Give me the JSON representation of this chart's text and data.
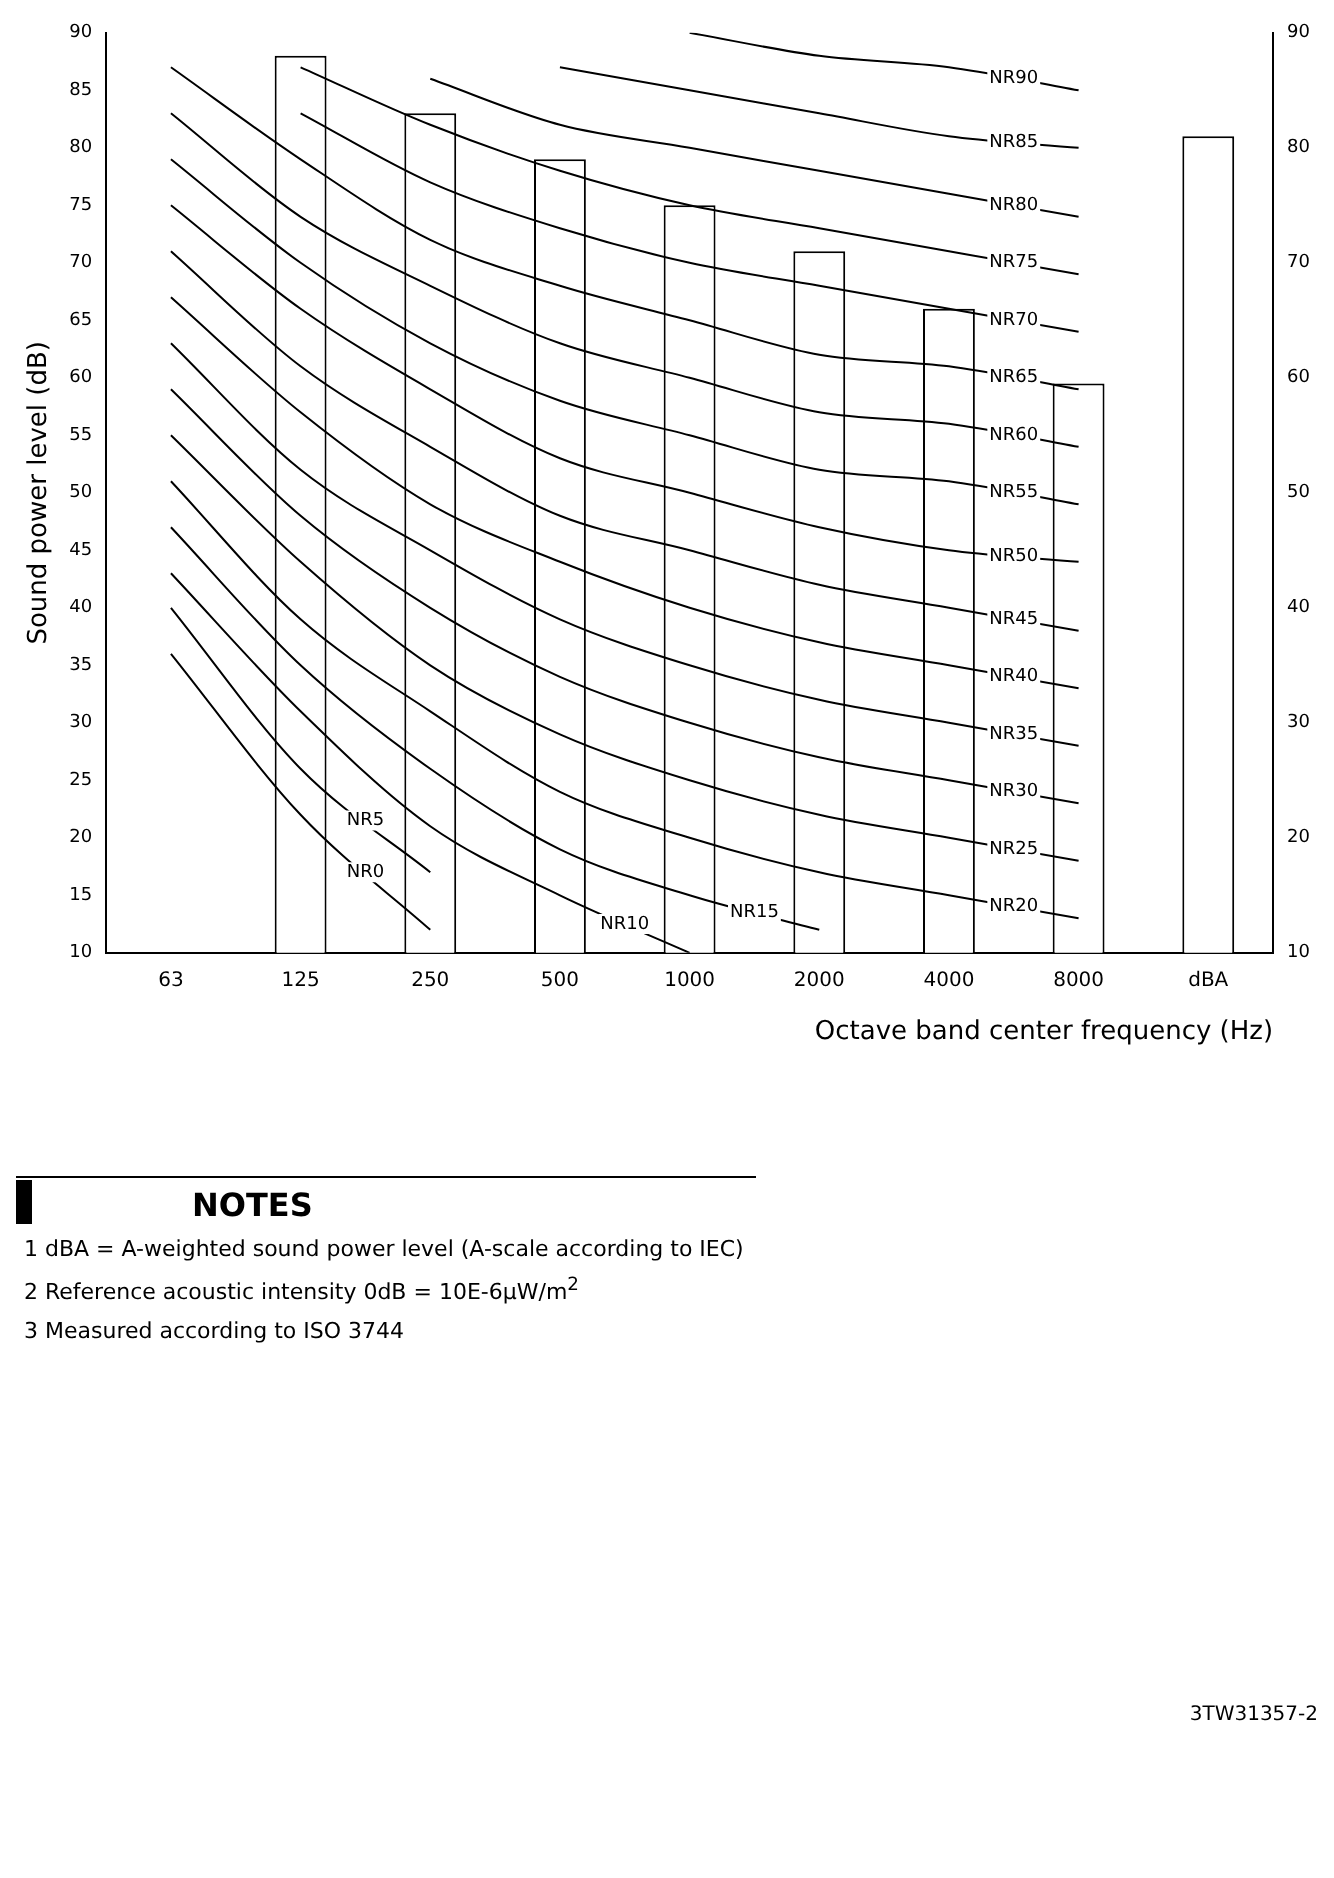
{
  "chart_data": {
    "type": "bar",
    "xlabel": "Octave band center frequency (Hz)",
    "ylabel": "Sound power level (dB)",
    "categories": [
      "63",
      "125",
      "250",
      "500",
      "1000",
      "2000",
      "4000",
      "8000",
      "dBA"
    ],
    "ylim": [
      10,
      90
    ],
    "yticks": [
      10,
      15,
      20,
      25,
      30,
      35,
      40,
      45,
      50,
      55,
      60,
      65,
      70,
      75,
      80,
      85,
      90
    ],
    "y2lim": [
      10,
      90
    ],
    "y2ticks": [
      10,
      20,
      30,
      40,
      50,
      60,
      70,
      80,
      90
    ],
    "grid": false,
    "legend": false,
    "series": [
      {
        "type": "bar",
        "color": "#ffffff",
        "values": [
          null,
          88,
          83,
          79,
          75,
          71,
          66,
          59.5,
          81
        ]
      },
      {
        "type": "line",
        "name": "NR0",
        "color": "#000000",
        "values": [
          36,
          22,
          12,
          null,
          null,
          null,
          null,
          null,
          null
        ]
      },
      {
        "type": "line",
        "name": "NR5",
        "color": "#000000",
        "values": [
          40,
          26,
          17,
          null,
          null,
          null,
          null,
          null,
          null
        ]
      },
      {
        "type": "line",
        "name": "NR10",
        "color": "#000000",
        "values": [
          43,
          31,
          21,
          15,
          10,
          null,
          null,
          null,
          null
        ]
      },
      {
        "type": "line",
        "name": "NR15",
        "color": "#000000",
        "values": [
          47,
          35,
          26,
          19,
          15,
          12,
          null,
          null,
          null
        ]
      },
      {
        "type": "line",
        "name": "NR20",
        "color": "#000000",
        "values": [
          51,
          39,
          31,
          24,
          20,
          17,
          15,
          13,
          null
        ]
      },
      {
        "type": "line",
        "name": "NR25",
        "color": "#000000",
        "values": [
          55,
          44,
          35,
          29,
          25,
          22,
          20,
          18,
          null
        ]
      },
      {
        "type": "line",
        "name": "NR30",
        "color": "#000000",
        "values": [
          59,
          48,
          40,
          34,
          30,
          27,
          25,
          23,
          null
        ]
      },
      {
        "type": "line",
        "name": "NR35",
        "color": "#000000",
        "values": [
          63,
          52,
          45,
          39,
          35,
          32,
          30,
          28,
          null
        ]
      },
      {
        "type": "line",
        "name": "NR40",
        "color": "#000000",
        "values": [
          67,
          57,
          49,
          44,
          40,
          37,
          35,
          33,
          null
        ]
      },
      {
        "type": "line",
        "name": "NR45",
        "color": "#000000",
        "values": [
          71,
          61,
          54,
          48,
          45,
          42,
          40,
          38,
          null
        ]
      },
      {
        "type": "line",
        "name": "NR50",
        "color": "#000000",
        "values": [
          75,
          66,
          59,
          53,
          50,
          47,
          45,
          44,
          null
        ]
      },
      {
        "type": "line",
        "name": "NR55",
        "color": "#000000",
        "values": [
          79,
          70,
          63,
          58,
          55,
          52,
          51,
          49,
          null
        ]
      },
      {
        "type": "line",
        "name": "NR60",
        "color": "#000000",
        "values": [
          83,
          74,
          68,
          63,
          60,
          57,
          56,
          54,
          null
        ]
      },
      {
        "type": "line",
        "name": "NR65",
        "color": "#000000",
        "values": [
          87,
          79,
          72,
          68,
          65,
          62,
          61,
          59,
          null
        ]
      },
      {
        "type": "line",
        "name": "NR70",
        "color": "#000000",
        "values": [
          null,
          83,
          77,
          73,
          70,
          68,
          66,
          64,
          null
        ]
      },
      {
        "type": "line",
        "name": "NR75",
        "color": "#000000",
        "values": [
          null,
          87,
          82,
          78,
          75,
          73,
          71,
          69,
          null
        ]
      },
      {
        "type": "line",
        "name": "NR80",
        "color": "#000000",
        "values": [
          null,
          null,
          86,
          82,
          80,
          78,
          76,
          74,
          null
        ]
      },
      {
        "type": "line",
        "name": "NR85",
        "color": "#000000",
        "values": [
          null,
          null,
          null,
          87,
          85,
          83,
          81,
          80,
          null
        ]
      },
      {
        "type": "line",
        "name": "NR90",
        "color": "#000000",
        "values": [
          null,
          null,
          null,
          null,
          90,
          88,
          87,
          85,
          null
        ]
      }
    ],
    "annotations": [
      "NOTES",
      "1   dBA = A-weighted sound power level (A-scale according to IEC)",
      "2   Reference acoustic intensity  0dB = 10E-6μW/m$^{2}$",
      "3   Measured according to ISO 3744",
      "3TW31357-2"
    ]
  }
}
